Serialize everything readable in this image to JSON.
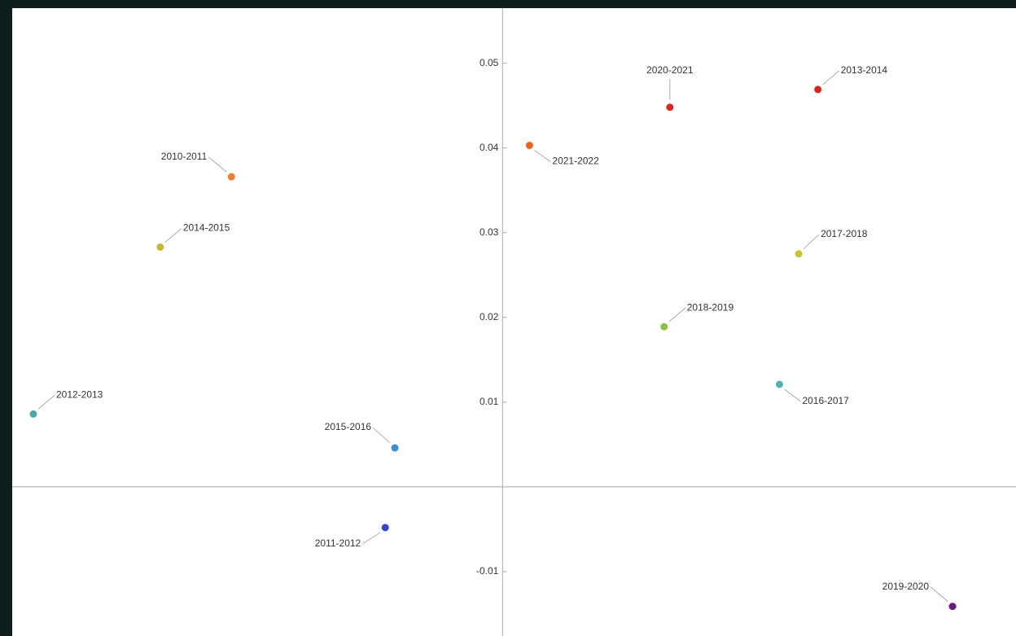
{
  "chart_data": {
    "type": "scatter",
    "xlim": [
      -0.0255,
      0.0267
    ],
    "ylim": [
      -0.0176,
      0.0565
    ],
    "yticks": [
      -0.01,
      0.01,
      0.02,
      0.03,
      0.04,
      0.05
    ],
    "points": [
      {
        "label": "2010-2011",
        "x": -0.0141,
        "y": 0.0366,
        "color": "#ee7f2d"
      },
      {
        "label": "2011-2012",
        "x": -0.0061,
        "y": -0.0048,
        "color": "#3547c8"
      },
      {
        "label": "2012-2013",
        "x": -0.0244,
        "y": 0.0086,
        "color": "#4aa8a0"
      },
      {
        "label": "2013-2014",
        "x": 0.0164,
        "y": 0.0469,
        "color": "#d8281e"
      },
      {
        "label": "2014-2015",
        "x": -0.0178,
        "y": 0.0283,
        "color": "#c9b633"
      },
      {
        "label": "2015-2016",
        "x": -0.0056,
        "y": 0.0046,
        "color": "#3d8fcf"
      },
      {
        "label": "2016-2017",
        "x": 0.0144,
        "y": 0.0121,
        "color": "#4db3b0"
      },
      {
        "label": "2017-2018",
        "x": 0.0154,
        "y": 0.0275,
        "color": "#cdc13a"
      },
      {
        "label": "2018-2019",
        "x": 0.0084,
        "y": 0.0189,
        "color": "#8fbf45"
      },
      {
        "label": "2019-2020",
        "x": 0.0234,
        "y": -0.0141,
        "color": "#6a1b7b"
      },
      {
        "label": "2020-2021",
        "x": 0.0087,
        "y": 0.0448,
        "color": "#d42a20"
      },
      {
        "label": "2021-2022",
        "x": 0.0014,
        "y": 0.0403,
        "color": "#e9641f"
      }
    ]
  }
}
